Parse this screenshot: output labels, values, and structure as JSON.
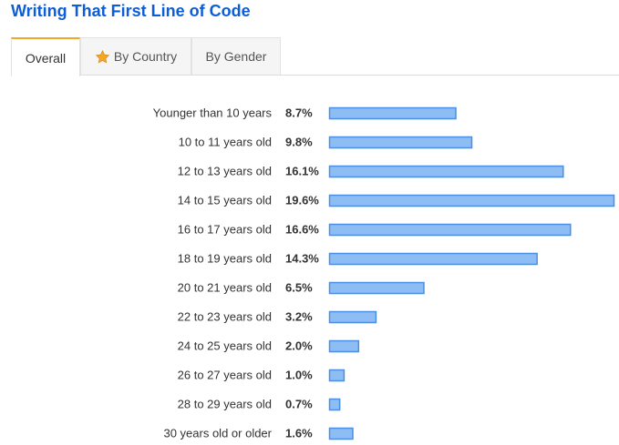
{
  "header": {
    "title": "Writing That First Line of Code"
  },
  "tabs": [
    {
      "label": "Overall",
      "active": true
    },
    {
      "label": "By Country",
      "active": false,
      "icon": "star-icon"
    },
    {
      "label": "By Gender",
      "active": false
    }
  ],
  "colors": {
    "title": "#0b5ed7",
    "bar_fill": "#8ebcf5",
    "bar_stroke": "#4a8fe0",
    "tab_accent": "#f5a623"
  },
  "chart_data": {
    "type": "bar",
    "orientation": "horizontal",
    "categories": [
      "Younger than 10 years",
      "10 to 11 years old",
      "12 to 13 years old",
      "14 to 15 years old",
      "16 to 17 years old",
      "18 to 19 years old",
      "20 to 21 years old",
      "22 to 23 years old",
      "24 to 25 years old",
      "26 to 27 years old",
      "28 to 29 years old",
      "30 years old or older"
    ],
    "values": [
      8.7,
      9.8,
      16.1,
      19.6,
      16.6,
      14.3,
      6.5,
      3.2,
      2.0,
      1.0,
      0.7,
      1.6
    ],
    "value_labels": [
      "8.7%",
      "9.8%",
      "16.1%",
      "19.6%",
      "16.6%",
      "14.3%",
      "6.5%",
      "3.2%",
      "2.0%",
      "1.0%",
      "0.7%",
      "1.6%"
    ],
    "unit": "%",
    "xlim": [
      0,
      19.6
    ],
    "grid": false,
    "legend": "none"
  }
}
